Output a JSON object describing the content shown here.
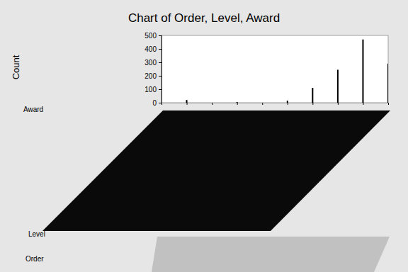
{
  "chart_data": {
    "type": "bar",
    "title": "Chart of Order, Level, Award",
    "y_label": "Count",
    "annotations": [
      "Award",
      "Level",
      "Order"
    ],
    "categories": [
      null,
      null,
      null,
      null,
      null,
      null,
      null,
      null,
      null,
      null
    ],
    "values": [
      0,
      20,
      0,
      5,
      0,
      15,
      110,
      245,
      470,
      290
    ],
    "color": "#000000",
    "ylim": [
      0,
      500
    ],
    "yticks": [
      0,
      100,
      200,
      300,
      400,
      500
    ],
    "grid": false,
    "tick_labels": "y"
  }
}
